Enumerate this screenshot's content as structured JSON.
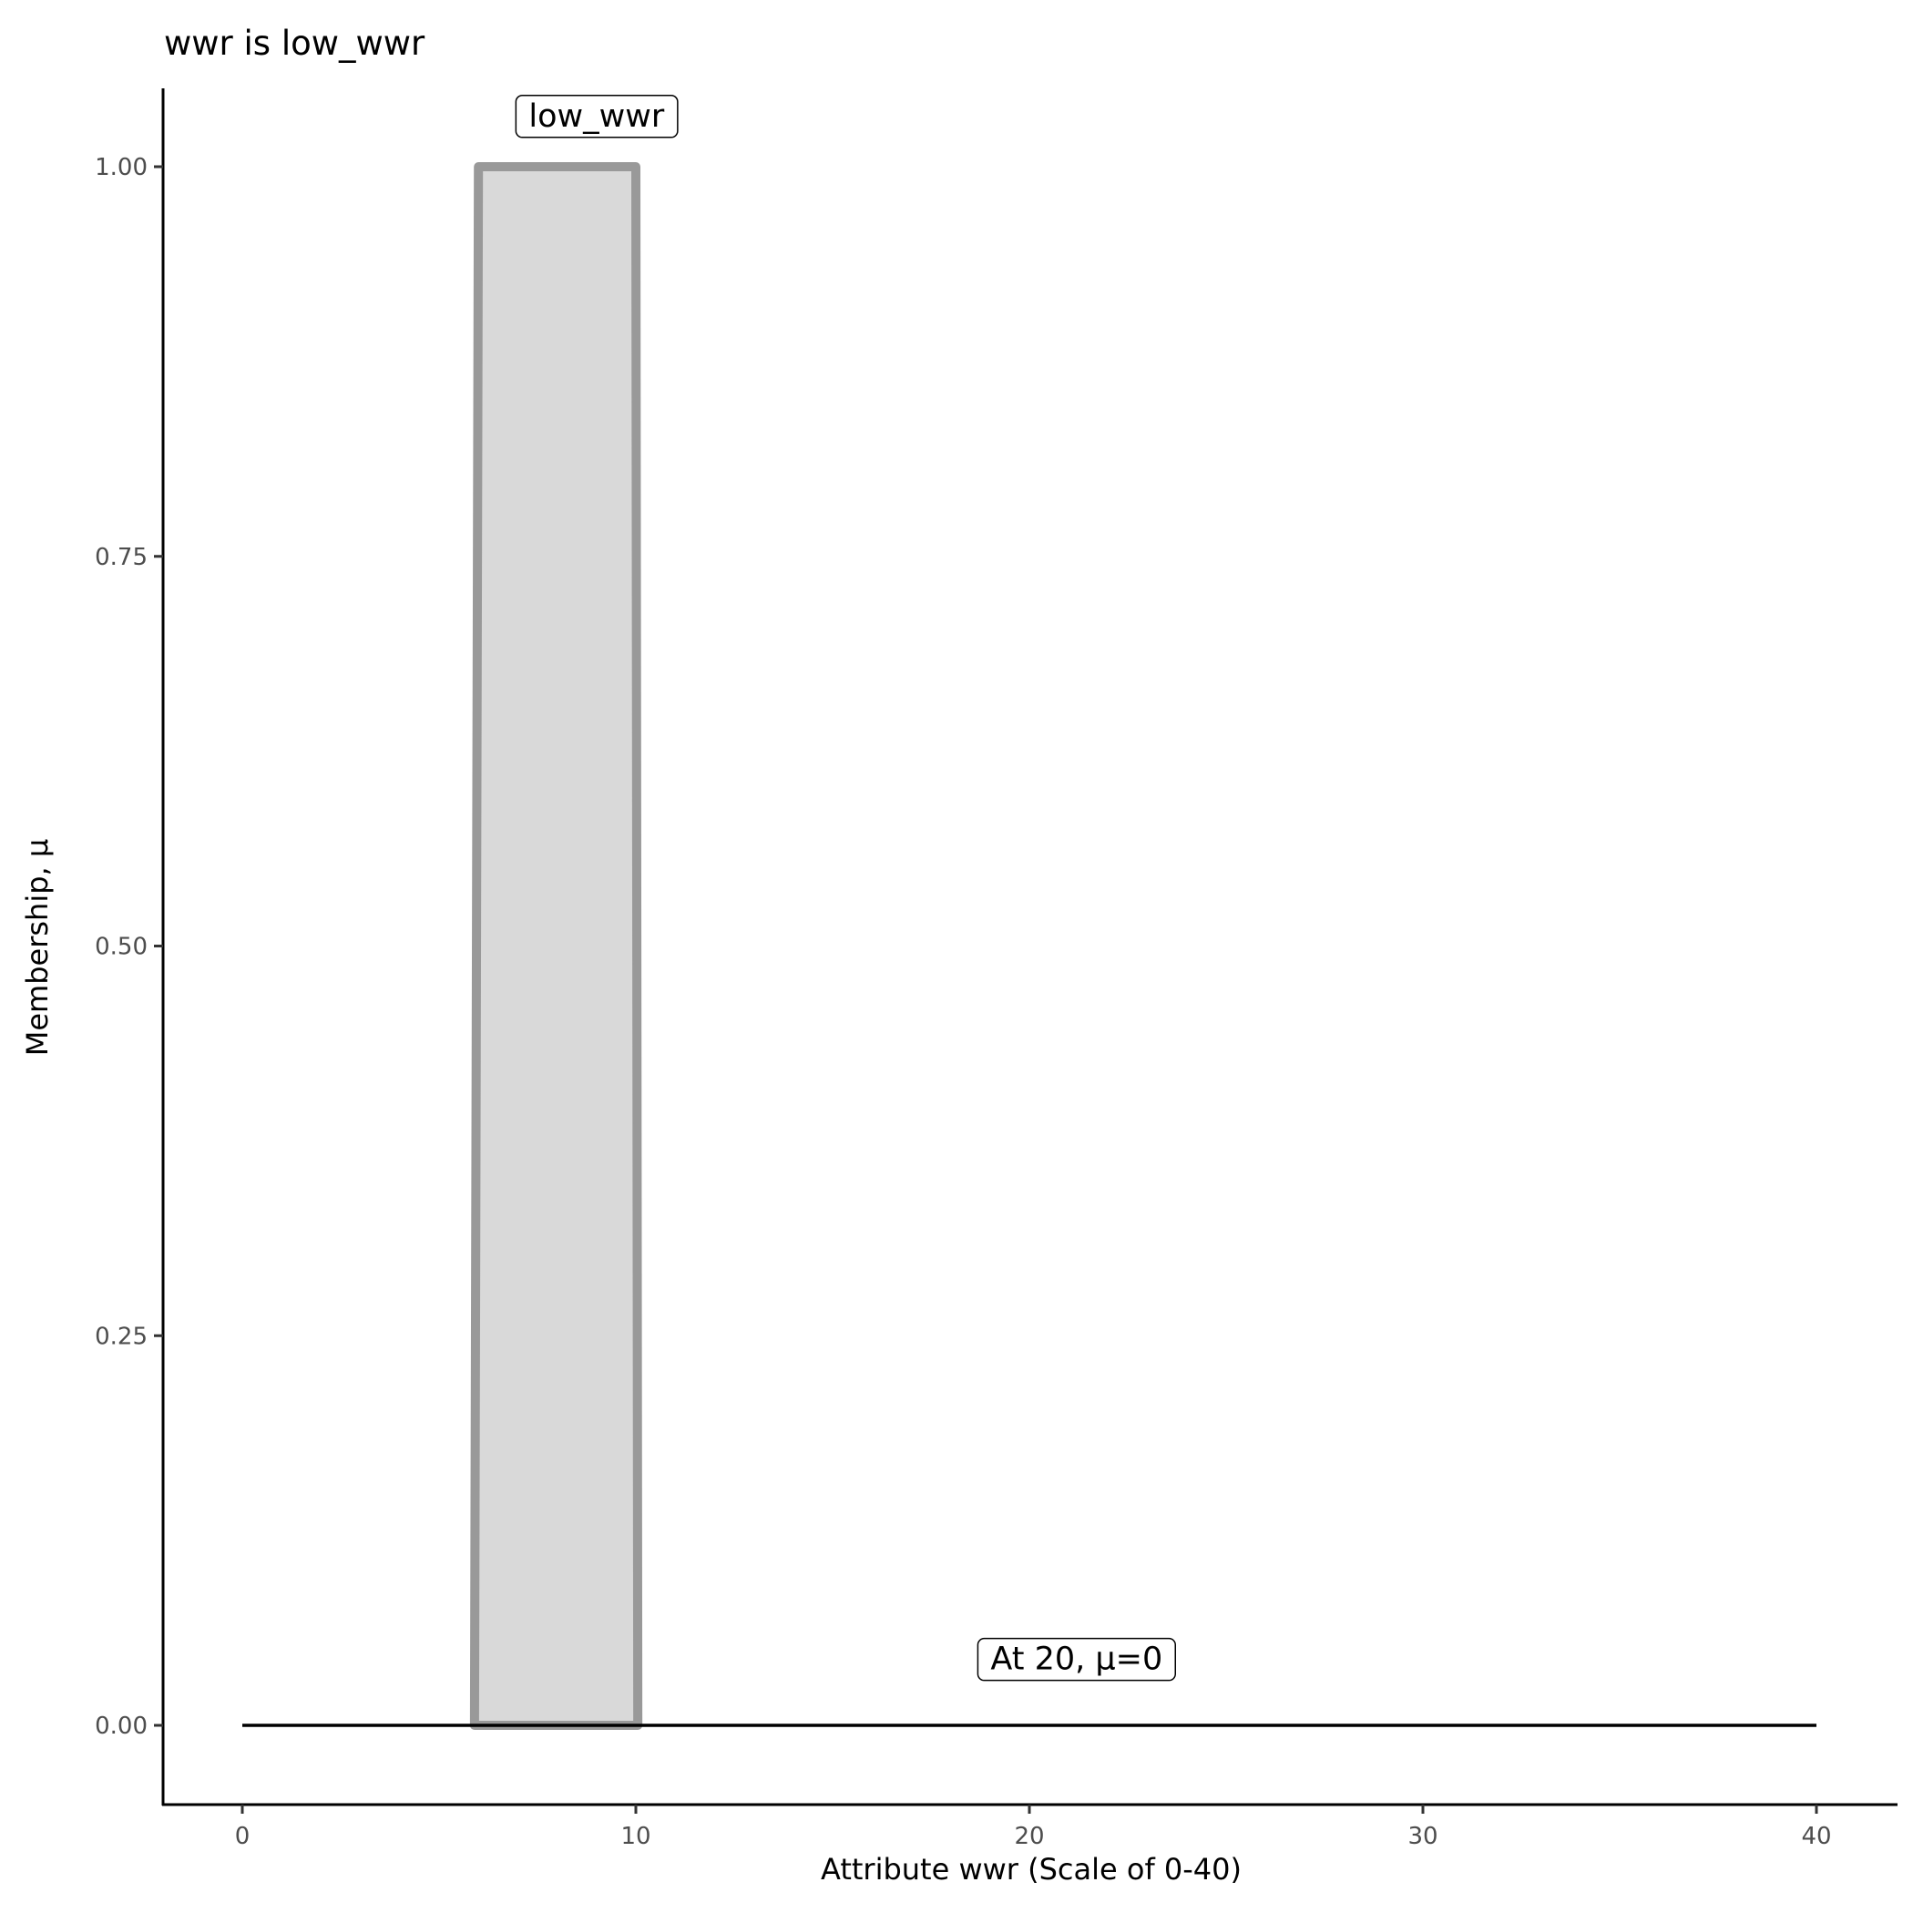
{
  "chart_data": {
    "type": "area",
    "title": "wwr is low_wwr",
    "xlabel": "Attribute wwr (Scale of 0-40)",
    "ylabel": "Membership, μ",
    "xlim": [
      -2,
      42
    ],
    "ylim": [
      -0.05,
      1.05
    ],
    "x_ticks": [
      0,
      10,
      20,
      30,
      40
    ],
    "x_tick_labels": [
      "0",
      "10",
      "20",
      "30",
      "40"
    ],
    "y_ticks": [
      0,
      0.25,
      0.5,
      0.75,
      1.0
    ],
    "y_tick_labels": [
      "0.00",
      "0.25",
      "0.50",
      "0.75",
      "1.00"
    ],
    "grid": false,
    "series": [
      {
        "name": "low_wwr",
        "x": [
          5.9,
          6,
          10,
          10.05
        ],
        "y": [
          0,
          1,
          1,
          0
        ],
        "fill": "#d9d9d9",
        "stroke": "#999999"
      }
    ],
    "baseline": {
      "x": [
        0,
        40
      ],
      "y": [
        0,
        0
      ],
      "color": "#000000"
    },
    "annotations": [
      {
        "text": "low_wwr",
        "x": 9,
        "y": 1.02
      },
      {
        "text": "At 20, μ=0",
        "x": 21.2,
        "y": 0.03
      }
    ]
  }
}
